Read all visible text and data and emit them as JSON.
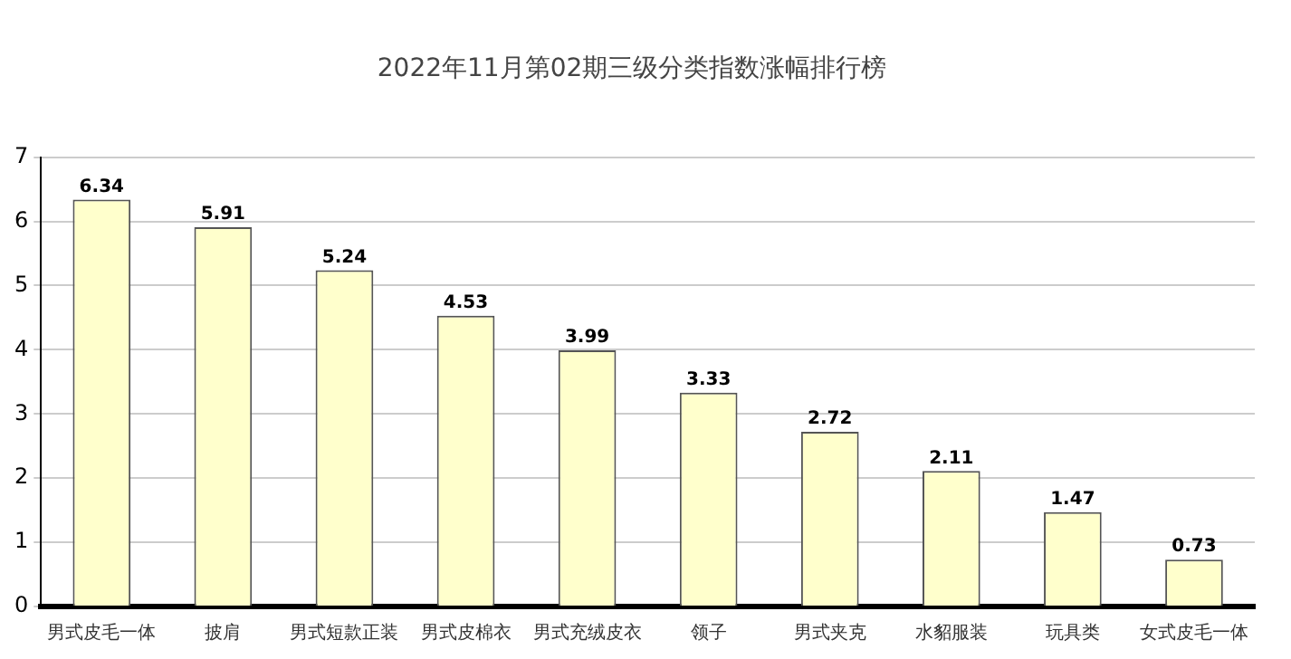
{
  "chart_data": {
    "type": "bar",
    "title": "2022年11月第02期三级分类指数涨幅排行榜",
    "categories": [
      "男式皮毛一体",
      "披肩",
      "男式短款正装",
      "男式皮棉衣",
      "男式充绒皮衣",
      "领子",
      "男式夹克",
      "水貂服装",
      "玩具类",
      "女式皮毛一体"
    ],
    "values": [
      6.34,
      5.91,
      5.24,
      4.53,
      3.99,
      3.33,
      2.72,
      2.11,
      1.47,
      0.73
    ],
    "color": "#ffffcc",
    "ylim": [
      0,
      7
    ],
    "yticks": [
      0,
      1,
      2,
      3,
      4,
      5,
      6,
      7
    ],
    "grid": "y",
    "legend": false,
    "data_labels": true
  }
}
